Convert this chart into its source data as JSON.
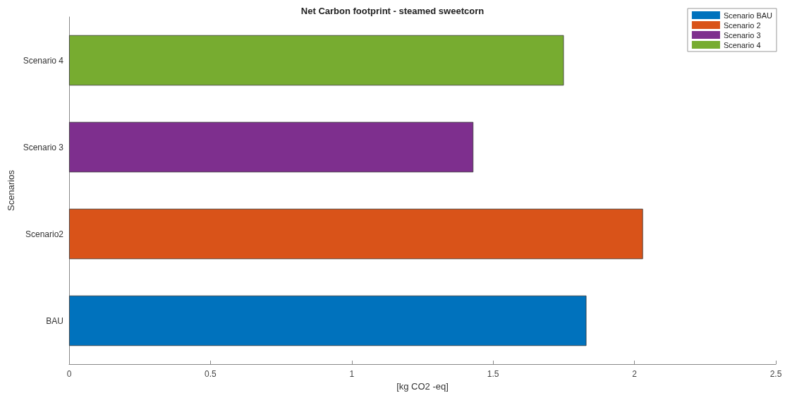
{
  "chart_data": {
    "type": "bar",
    "orientation": "horizontal",
    "title": "Net Carbon footprint - steamed sweetcorn",
    "xlabel": "[kg CO2 -eq]",
    "ylabel": "Scenarios",
    "categories": [
      "Scenario 4",
      "Scenario 3",
      "Scenario2",
      "BAU"
    ],
    "series": [
      {
        "name": "Scenario BAU",
        "color": "#0072bd",
        "values": [
          null,
          null,
          null,
          1.83
        ]
      },
      {
        "name": "Scenario 2",
        "color": "#d95319",
        "values": [
          null,
          null,
          2.03,
          null
        ]
      },
      {
        "name": "Scenario 3",
        "color": "#7e2f8e",
        "values": [
          null,
          1.43,
          null,
          null
        ]
      },
      {
        "name": "Scenario 4",
        "color": "#77ac30",
        "values": [
          1.75,
          null,
          null,
          null
        ]
      }
    ],
    "xlim": [
      0,
      2.5
    ],
    "xticks": [
      0,
      0.5,
      1,
      1.5,
      2,
      2.5
    ],
    "grid": false,
    "legend": "top right"
  }
}
